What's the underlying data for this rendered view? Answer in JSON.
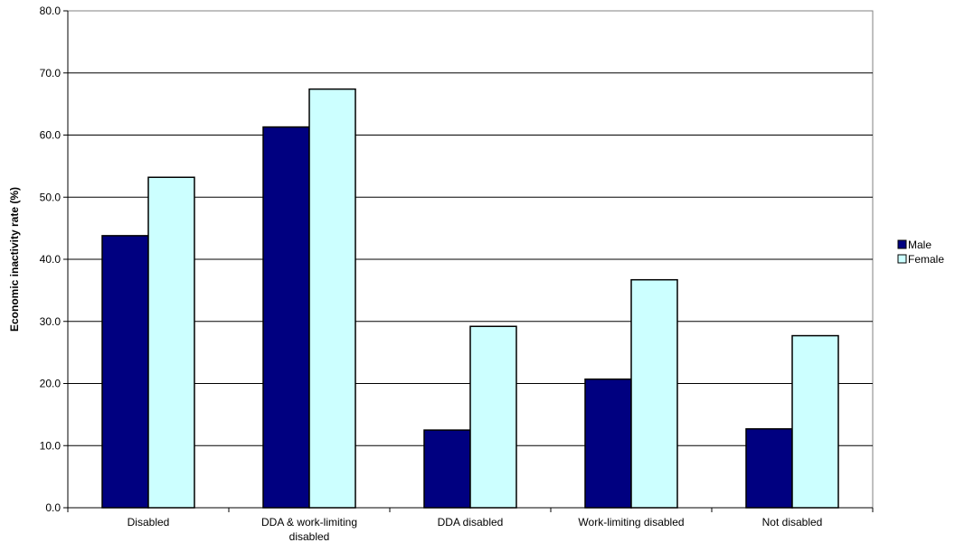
{
  "chart_data": {
    "type": "bar",
    "categories": [
      [
        "Disabled"
      ],
      [
        "DDA & work-limiting",
        "disabled"
      ],
      [
        "DDA disabled"
      ],
      [
        "Work-limiting disabled"
      ],
      [
        "Not disabled"
      ]
    ],
    "series": [
      {
        "name": "Male",
        "color": "#000080",
        "values": [
          43.8,
          61.3,
          12.5,
          20.7,
          12.7
        ]
      },
      {
        "name": "Female",
        "color": "#CCFFFF",
        "values": [
          53.2,
          67.4,
          29.2,
          36.7,
          27.7
        ]
      }
    ],
    "ylabel": "Economic inactivity rate (%)",
    "ylim": [
      0,
      80
    ],
    "yticks": [
      "0.0",
      "10.0",
      "20.0",
      "30.0",
      "40.0",
      "50.0",
      "60.0",
      "70.0",
      "80.0"
    ],
    "grid": true,
    "legend": "right"
  }
}
